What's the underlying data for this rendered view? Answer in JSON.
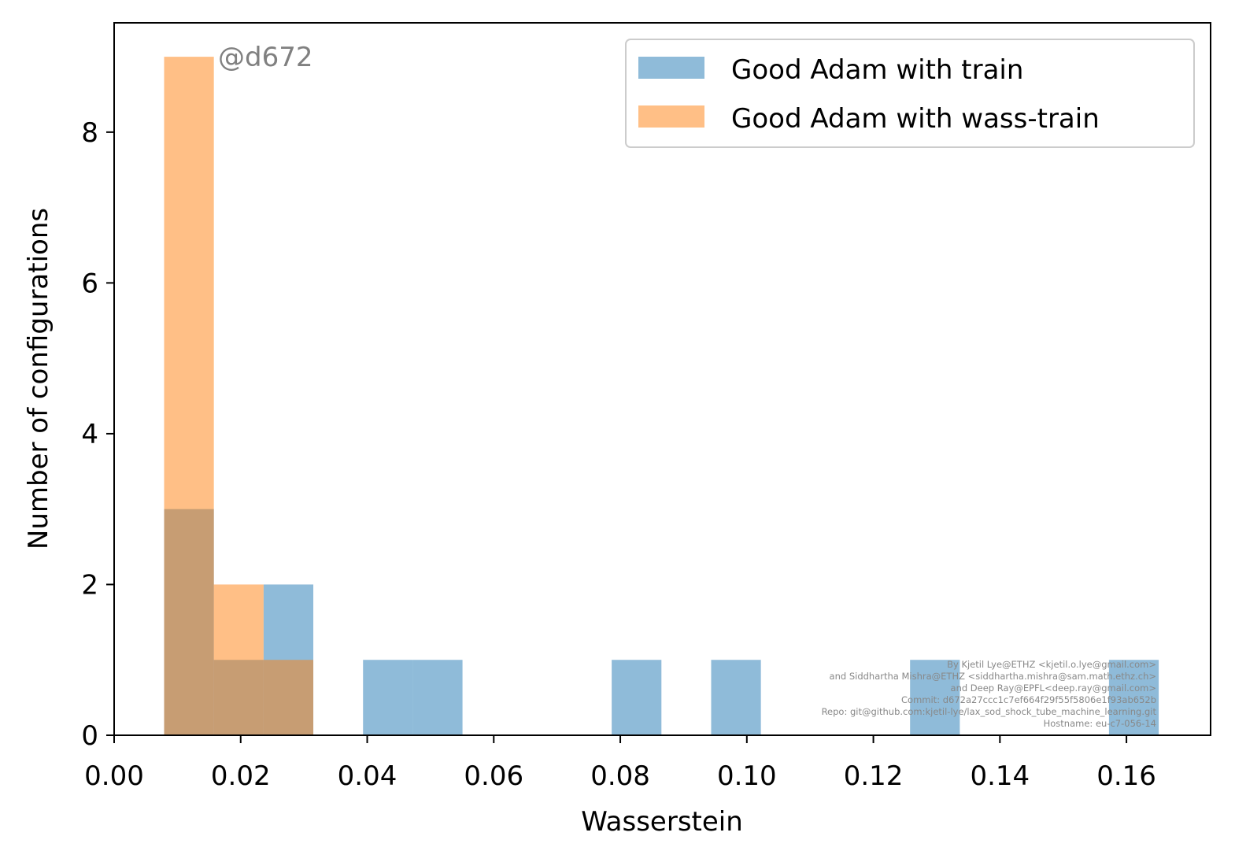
{
  "chart_data": {
    "type": "bar",
    "xlabel": "Wasserstein",
    "ylabel": "Number of configurations",
    "xlim": [
      0.0,
      0.1733
    ],
    "ylim": [
      0,
      9.45
    ],
    "xticks": [
      "0.00",
      "0.02",
      "0.04",
      "0.06",
      "0.08",
      "0.10",
      "0.12",
      "0.14",
      "0.16"
    ],
    "yticks": [
      "0",
      "2",
      "4",
      "6",
      "8"
    ],
    "grid": false,
    "legend_position": "top-right",
    "bin_edges": [
      0.0079,
      0.01576,
      0.02362,
      0.03148,
      0.03934,
      0.0472,
      0.05506,
      0.06292,
      0.07078,
      0.07864,
      0.0865,
      0.09436,
      0.10222,
      0.11008,
      0.11794,
      0.1258,
      0.13366,
      0.14152,
      0.14938,
      0.15724,
      0.1651
    ],
    "series": [
      {
        "name": "Good Adam with train",
        "color": "#1f77b4",
        "alpha": 0.5,
        "values": [
          3,
          1,
          2,
          0,
          1,
          1,
          0,
          0,
          0,
          1,
          0,
          1,
          0,
          0,
          0,
          1,
          0,
          0,
          0,
          1
        ]
      },
      {
        "name": "Good Adam with wass-train",
        "color": "#ff7f0e",
        "alpha": 0.5,
        "values": [
          9,
          2,
          1,
          0,
          0,
          0,
          0,
          0,
          0,
          0,
          0,
          0,
          0,
          0,
          0,
          0,
          0,
          0,
          0,
          0
        ]
      }
    ],
    "annotations": {
      "tag": "@d672",
      "credits": [
        "By Kjetil Lye@ETHZ <kjetil.o.lye@gmail.com>",
        "and Siddhartha Mishra@ETHZ <siddhartha.mishra@sam.math.ethz.ch>",
        "and Deep Ray@EPFL<deep.ray@gmail.com>",
        "Commit: d672a27ccc1c7ef664f29f55f5806e1f93ab652b",
        "Repo: git@github.com:kjetil-lye/lax_sod_shock_tube_machine_learning.git",
        "Hostname: eu-c7-056-14"
      ]
    }
  }
}
